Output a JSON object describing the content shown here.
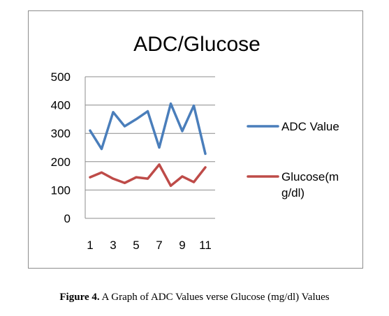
{
  "caption": {
    "label": "Figure 4.",
    "text": "A Graph of ADC Values verse Glucose (mg/dl) Values"
  },
  "chart_data": {
    "type": "line",
    "title": "ADC/Glucose",
    "xlabel": "",
    "ylabel": "",
    "x": [
      1,
      2,
      3,
      4,
      5,
      6,
      7,
      8,
      9,
      10,
      11
    ],
    "x_tick_labels": [
      "1",
      "3",
      "5",
      "7",
      "9",
      "11"
    ],
    "x_tick_values": [
      1,
      3,
      5,
      7,
      9,
      11
    ],
    "ylim": [
      0,
      500
    ],
    "y_ticks": [
      0,
      100,
      200,
      300,
      400,
      500
    ],
    "grid": "horizontal",
    "legend_position": "right",
    "series": [
      {
        "name": "ADC Value",
        "color": "#4a7ebb",
        "values": [
          310,
          245,
          375,
          325,
          350,
          378,
          250,
          405,
          308,
          398,
          228
        ]
      },
      {
        "name": "Glucose(m g/dl)",
        "name_lines": [
          "Glucose(m",
          "g/dl)"
        ],
        "color": "#be4b48",
        "values": [
          145,
          162,
          140,
          125,
          145,
          140,
          190,
          115,
          148,
          128,
          180
        ]
      }
    ]
  }
}
